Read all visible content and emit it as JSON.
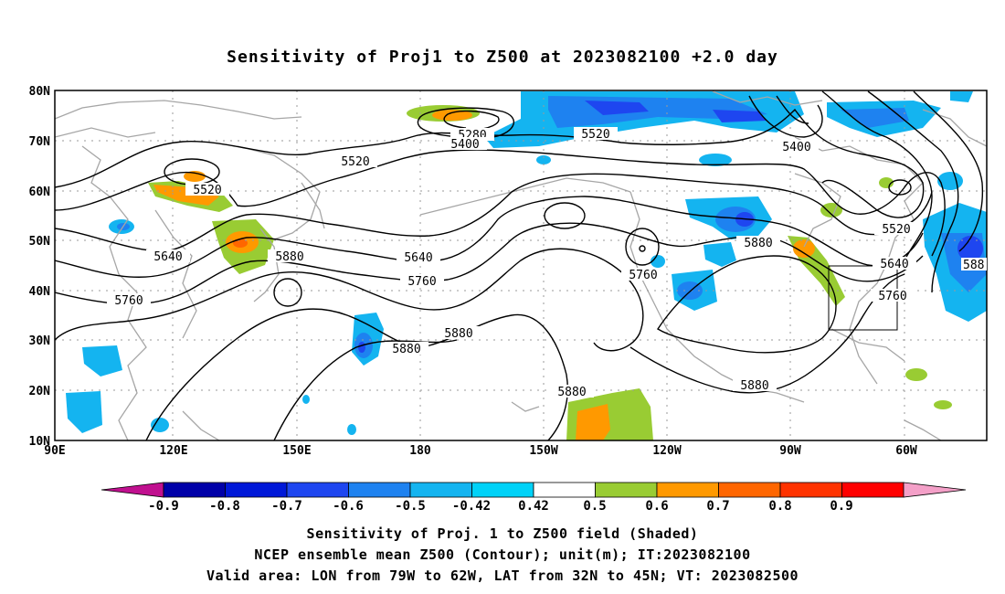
{
  "title": "Sensitivity of Proj1 to Z500 at 2023082100 +2.0 day",
  "map": {
    "lat_labels": [
      "80N",
      "70N",
      "60N",
      "50N",
      "40N",
      "30N",
      "20N",
      "10N"
    ],
    "lon_labels": [
      "90E",
      "120E",
      "150E",
      "180",
      "150W",
      "120W",
      "90W",
      "60W"
    ],
    "contour_labels": [
      {
        "text": "5280"
      },
      {
        "text": "5400"
      },
      {
        "text": "5520"
      },
      {
        "text": "5400"
      },
      {
        "text": "5520"
      },
      {
        "text": "5520"
      },
      {
        "text": "5520"
      },
      {
        "text": "5640"
      },
      {
        "text": "5640"
      },
      {
        "text": "5640"
      },
      {
        "text": "5760"
      },
      {
        "text": "5760"
      },
      {
        "text": "5760"
      },
      {
        "text": "5760"
      },
      {
        "text": "5880"
      },
      {
        "text": "5880"
      },
      {
        "text": "5880"
      },
      {
        "text": "5880"
      },
      {
        "text": "5880"
      },
      {
        "text": "5880"
      },
      {
        "text": "588"
      }
    ]
  },
  "colorbar": {
    "labels": [
      "-0.9",
      "-0.8",
      "-0.7",
      "-0.6",
      "-0.5",
      "-0.42",
      "0.42",
      "0.5",
      "0.6",
      "0.7",
      "0.8",
      "0.9"
    ],
    "colors": [
      "#c0108f",
      "#0000a8",
      "#0018d8",
      "#1e46f0",
      "#1e82f0",
      "#14b4f0",
      "#00d2f8",
      "#ffffff",
      "#99cc33",
      "#ff9900",
      "#ff6600",
      "#ff3300",
      "#ff0000",
      "#f4a0c8"
    ]
  },
  "footer": {
    "line1": "Sensitivity of Proj. 1 to Z500 field (Shaded)",
    "line2": "NCEP ensemble mean Z500 (Contour); unit(m); IT:2023082100",
    "line3": "Valid area: LON from 79W to 62W, LAT from 32N to 45N; VT: 2023082500"
  }
}
